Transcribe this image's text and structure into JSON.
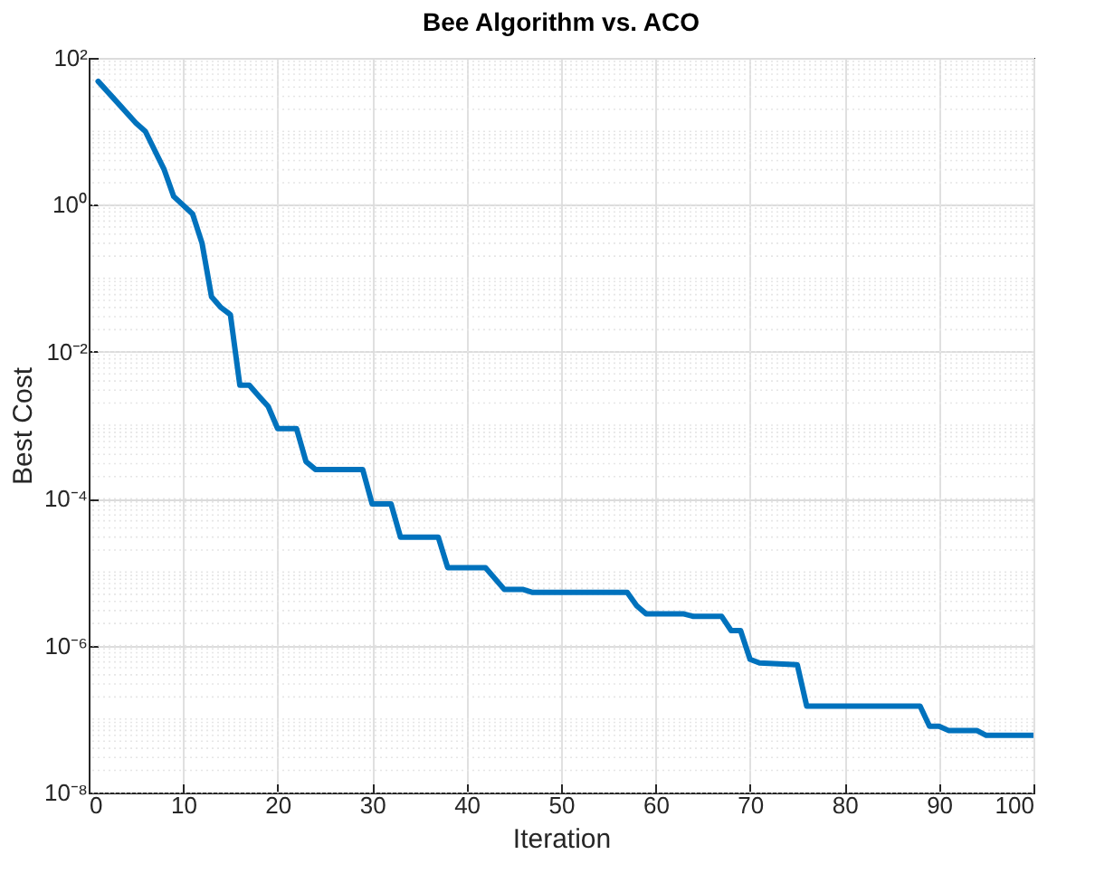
{
  "chart_data": {
    "type": "line",
    "title": "Bee Algorithm vs. ACO",
    "xlabel": "Iteration",
    "ylabel": "Best Cost",
    "log": true,
    "grid": true,
    "line_style": "solid",
    "xlim": [
      0,
      100
    ],
    "xticks": [
      0,
      10,
      20,
      30,
      40,
      50,
      60,
      70,
      80,
      90,
      100
    ],
    "ylim": [
      1e-08,
      100
    ],
    "yticks": [
      {
        "value": 1e-08,
        "label": "10⁻⁸"
      },
      {
        "value": 1e-06,
        "label": "10⁻⁶"
      },
      {
        "value": 0.0001,
        "label": "10⁻⁴"
      },
      {
        "value": 0.01,
        "label": "10⁻²"
      },
      {
        "value": 1,
        "label": "10⁰"
      },
      {
        "value": 100,
        "label": "10²"
      }
    ],
    "series": [
      {
        "color": "#0072bd",
        "x": [
          1,
          3,
          5,
          6,
          8,
          9,
          11,
          12,
          13,
          14,
          15,
          16,
          17,
          18,
          19,
          20,
          22,
          23,
          24,
          29,
          30,
          32,
          33,
          37,
          38,
          42,
          44,
          46,
          47,
          57,
          58,
          59,
          63,
          64,
          67,
          68,
          69,
          70,
          71,
          75,
          76,
          88,
          89,
          90,
          91,
          94,
          95,
          100
        ],
        "values": [
          48,
          25,
          13,
          10,
          3,
          1.3,
          0.75,
          0.3,
          0.056,
          0.04,
          0.032,
          0.0035,
          0.0035,
          0.0025,
          0.0018,
          0.0009,
          0.0009,
          0.00032,
          0.00025,
          0.00025,
          8.5e-05,
          8.5e-05,
          3e-05,
          3e-05,
          1.15e-05,
          1.15e-05,
          5.8e-06,
          5.8e-06,
          5.3e-06,
          5.3e-06,
          3.5e-06,
          2.7e-06,
          2.7e-06,
          2.5e-06,
          2.5e-06,
          1.6e-06,
          1.6e-06,
          6.5e-07,
          5.8e-07,
          5.5e-07,
          1.5e-07,
          1.5e-07,
          8e-08,
          8e-08,
          7e-08,
          7e-08,
          6e-08,
          6e-08
        ]
      }
    ]
  }
}
